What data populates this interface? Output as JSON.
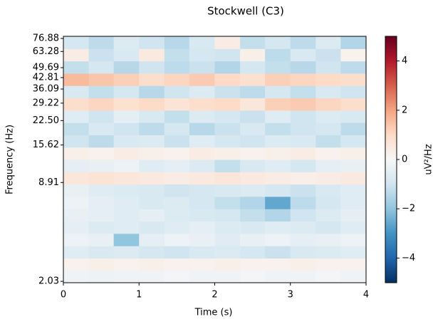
{
  "chart_data": {
    "type": "heatmap",
    "title": "Stockwell (C3)",
    "xlabel": "Time (s)",
    "ylabel": "Frequency (Hz)",
    "xlim": [
      0,
      4
    ],
    "xticks": [
      0,
      1,
      2,
      3,
      4
    ],
    "ylim": [
      1.99,
      79.4
    ],
    "yscale": "log",
    "yticks": [
      2.03,
      8.91,
      15.62,
      {
        "value": 22.5,
        "label": "22.50"
      },
      29.22,
      36.09,
      42.81,
      49.69,
      63.28,
      76.88
    ],
    "x": [
      0.17,
      0.5,
      0.83,
      1.17,
      1.5,
      1.83,
      2.17,
      2.5,
      2.83,
      3.17,
      3.5,
      3.83
    ],
    "y": [
      2.18,
      2.62,
      3.15,
      3.79,
      4.56,
      5.48,
      6.59,
      7.93,
      9.53,
      11.46,
      13.78,
      16.56,
      19.92,
      23.95,
      28.8,
      34.63,
      41.63,
      50.06,
      60.2,
      72.38
    ],
    "z": [
      [
        -0.2,
        -0.3,
        -0.2,
        -0.2,
        -0.1,
        -0.2,
        -0.2,
        -0.1,
        -0.2,
        -0.2,
        -0.1,
        -0.2
      ],
      [
        0.2,
        0.3,
        0.2,
        0.3,
        0.2,
        0.2,
        0.3,
        0.2,
        0.2,
        0.3,
        0.2,
        0.2
      ],
      [
        -0.6,
        -0.8,
        -0.7,
        -0.9,
        -1.0,
        -0.8,
        -0.7,
        -0.9,
        -1.1,
        -0.8,
        -0.7,
        -0.6
      ],
      [
        -0.3,
        -0.4,
        -2.0,
        -0.5,
        -0.3,
        -0.4,
        -0.6,
        -0.4,
        -0.3,
        -0.5,
        -0.4,
        -0.3
      ],
      [
        -0.5,
        -0.7,
        -0.6,
        -0.8,
        -0.6,
        -0.5,
        -0.7,
        -0.8,
        -0.6,
        -0.7,
        -0.9,
        -0.6
      ],
      [
        -0.4,
        -0.5,
        -0.6,
        -0.5,
        -0.7,
        -0.8,
        -0.9,
        -1.2,
        -1.5,
        -1.0,
        -0.7,
        -0.5
      ],
      [
        -0.3,
        -0.5,
        -0.6,
        -0.8,
        -0.7,
        -0.9,
        -1.2,
        -1.5,
        -2.6,
        -1.3,
        -0.9,
        -0.6
      ],
      [
        -0.4,
        -0.6,
        -0.7,
        -0.8,
        -1.0,
        -0.9,
        -0.8,
        -0.7,
        -0.9,
        -1.1,
        -0.8,
        -0.6
      ],
      [
        0.6,
        0.7,
        0.6,
        0.5,
        0.4,
        0.5,
        0.6,
        0.5,
        0.4,
        0.3,
        0.4,
        0.5
      ],
      [
        -0.5,
        -0.4,
        -0.3,
        -0.6,
        -0.5,
        -0.7,
        -1.2,
        -0.8,
        -0.6,
        -0.9,
        -0.5,
        -0.4
      ],
      [
        0.3,
        0.2,
        0.4,
        0.3,
        0.2,
        0.4,
        0.3,
        0.2,
        0.3,
        0.4,
        0.2,
        0.3
      ],
      [
        -1.0,
        -1.3,
        -0.8,
        -0.7,
        -1.1,
        -0.6,
        -0.9,
        -1.0,
        -0.7,
        -0.8,
        -1.2,
        -0.9
      ],
      [
        -1.2,
        -0.8,
        -1.0,
        -1.3,
        -0.9,
        -1.4,
        -1.1,
        -0.8,
        -1.2,
        -1.0,
        -0.9,
        -1.3
      ],
      [
        -0.6,
        -1.0,
        -0.5,
        -0.8,
        -1.2,
        -0.7,
        -0.9,
        -1.1,
        -0.6,
        -1.0,
        -0.7,
        -0.8
      ],
      [
        0.9,
        1.1,
        0.8,
        1.0,
        0.7,
        0.9,
        1.0,
        0.6,
        1.2,
        1.3,
        1.1,
        0.9
      ],
      [
        -0.8,
        -1.2,
        -0.9,
        -1.4,
        -1.0,
        -0.7,
        -1.1,
        -1.3,
        -0.9,
        -1.2,
        -0.8,
        -1.0
      ],
      [
        1.6,
        1.4,
        1.2,
        0.9,
        1.1,
        1.3,
        1.0,
        0.8,
        1.2,
        1.1,
        1.0,
        0.9
      ],
      [
        -1.2,
        -0.9,
        -1.4,
        -1.0,
        -1.3,
        -1.1,
        -1.5,
        -0.9,
        -1.2,
        -1.4,
        -1.0,
        -1.3
      ],
      [
        0.4,
        -1.1,
        -0.8,
        0.5,
        -1.2,
        -0.9,
        -1.0,
        0.3,
        -1.3,
        -0.8,
        -1.1,
        0.2
      ],
      [
        -0.9,
        -1.3,
        -0.7,
        -1.0,
        -1.4,
        -0.8,
        0.4,
        -1.2,
        -0.9,
        -1.3,
        -0.7,
        -1.5
      ]
    ],
    "colormap": [
      "#053061",
      "#2166ac",
      "#4393c3",
      "#92c5de",
      "#d1e5f0",
      "#f7f7f7",
      "#fddbc7",
      "#f4a582",
      "#d6604d",
      "#b2182b",
      "#67001f"
    ],
    "colorbar": {
      "label": "uV²/Hz",
      "lim": [
        -5,
        5
      ],
      "ticks": [
        {
          "value": -4,
          "label": "−4"
        },
        {
          "value": -2,
          "label": "−2"
        },
        0,
        2,
        4
      ]
    }
  }
}
